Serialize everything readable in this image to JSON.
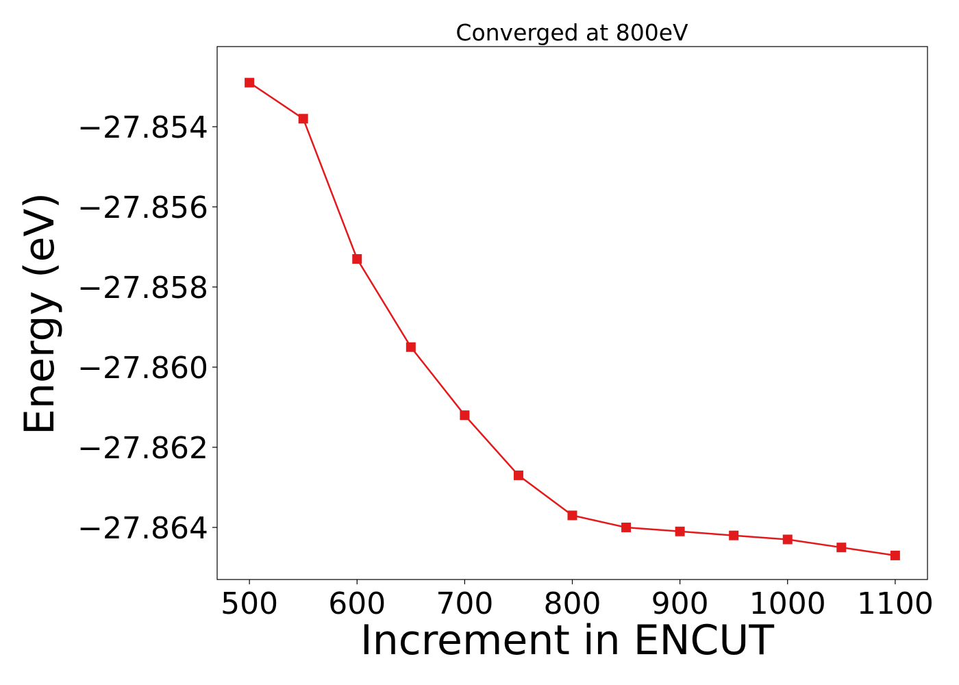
{
  "chart_data": {
    "type": "line",
    "title": "Converged at 800eV",
    "xlabel": "Increment in ENCUT",
    "ylabel": "Energy (eV)",
    "xlim": [
      470,
      1130
    ],
    "ylim": [
      -27.8653,
      -27.852
    ],
    "x_ticks": [
      500,
      600,
      700,
      800,
      900,
      1000,
      1100
    ],
    "y_ticks": [
      -27.854,
      -27.856,
      -27.858,
      -27.86,
      -27.862,
      -27.864
    ],
    "x_tick_labels": [
      "500",
      "600",
      "700",
      "800",
      "900",
      "1000",
      "1100"
    ],
    "y_tick_labels": [
      "−27.854",
      "−27.856",
      "−27.858",
      "−27.860",
      "−27.862",
      "−27.864"
    ],
    "grid": false,
    "legend": "none",
    "series": [
      {
        "color": "#e31a1c",
        "marker": "square",
        "x": [
          500,
          550,
          600,
          650,
          700,
          750,
          800,
          850,
          900,
          950,
          1000,
          1050,
          1100
        ],
        "y": [
          -27.8529,
          -27.8538,
          -27.8573,
          -27.8595,
          -27.8612,
          -27.8627,
          -27.8637,
          -27.864,
          -27.8641,
          -27.8642,
          -27.8643,
          -27.8645,
          -27.8647
        ]
      }
    ]
  }
}
